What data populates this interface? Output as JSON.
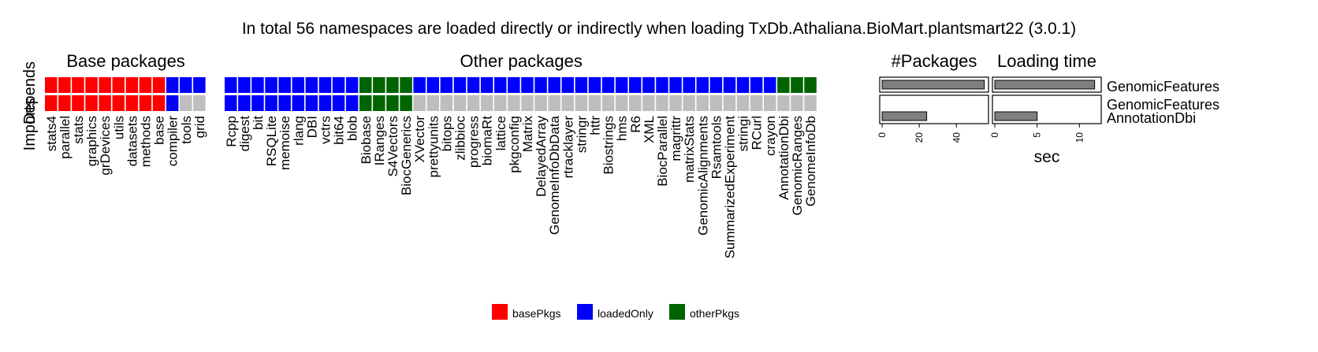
{
  "chart_data": {
    "type": "heatmap",
    "title": "In total 56 namespaces are loaded directly or indirectly when loading TxDb.Athaliana.BioMart.plantsmart22 (3.0.1)",
    "row_axis_label": "Depends",
    "row_axis_label_overlay": "Imports",
    "rows": [
      "Depends",
      "Imports"
    ],
    "groups": [
      {
        "name": "Base packages",
        "packages": [
          "stats4",
          "parallel",
          "stats",
          "graphics",
          "grDevices",
          "utils",
          "datasets",
          "methods",
          "base",
          "compiler",
          "tools",
          "grid"
        ],
        "depends": [
          "basePkgs",
          "basePkgs",
          "basePkgs",
          "basePkgs",
          "basePkgs",
          "basePkgs",
          "basePkgs",
          "basePkgs",
          "basePkgs",
          "loadedOnly",
          "loadedOnly",
          "loadedOnly"
        ],
        "imports": [
          "basePkgs",
          "basePkgs",
          "basePkgs",
          "basePkgs",
          "basePkgs",
          "basePkgs",
          "basePkgs",
          "basePkgs",
          "basePkgs",
          "loadedOnly",
          "none",
          "none"
        ]
      },
      {
        "name": "Other packages",
        "packages": [
          "Rcpp",
          "digest",
          "bit",
          "RSQLite",
          "memoise",
          "rlang",
          "DBI",
          "vctrs",
          "bit64",
          "blob",
          "Biobase",
          "IRanges",
          "S4Vectors",
          "BiocGenerics",
          "XVector",
          "prettyunits",
          "bitops",
          "zlibbioc",
          "progress",
          "biomaRt",
          "lattice",
          "pkgconfig",
          "Matrix",
          "DelayedArray",
          "GenomeInfoDbData",
          "rtracklayer",
          "stringr",
          "httr",
          "Biostrings",
          "hms",
          "R6",
          "XML",
          "BiocParallel",
          "magrittr",
          "matrixStats",
          "GenomicAlignments",
          "Rsamtools",
          "SummarizedExperiment",
          "stringi",
          "RCurl",
          "crayon",
          "AnnotationDbi",
          "GenomicRanges",
          "GenomeInfoDb"
        ],
        "depends": [
          "loadedOnly",
          "loadedOnly",
          "loadedOnly",
          "loadedOnly",
          "loadedOnly",
          "loadedOnly",
          "loadedOnly",
          "loadedOnly",
          "loadedOnly",
          "loadedOnly",
          "otherPkgs",
          "otherPkgs",
          "otherPkgs",
          "otherPkgs",
          "loadedOnly",
          "loadedOnly",
          "loadedOnly",
          "loadedOnly",
          "loadedOnly",
          "loadedOnly",
          "loadedOnly",
          "loadedOnly",
          "loadedOnly",
          "loadedOnly",
          "loadedOnly",
          "loadedOnly",
          "loadedOnly",
          "loadedOnly",
          "loadedOnly",
          "loadedOnly",
          "loadedOnly",
          "loadedOnly",
          "loadedOnly",
          "loadedOnly",
          "loadedOnly",
          "loadedOnly",
          "loadedOnly",
          "loadedOnly",
          "loadedOnly",
          "loadedOnly",
          "loadedOnly",
          "otherPkgs",
          "otherPkgs",
          "otherPkgs"
        ],
        "imports": [
          "loadedOnly",
          "loadedOnly",
          "loadedOnly",
          "loadedOnly",
          "loadedOnly",
          "loadedOnly",
          "loadedOnly",
          "loadedOnly",
          "loadedOnly",
          "loadedOnly",
          "otherPkgs",
          "otherPkgs",
          "otherPkgs",
          "otherPkgs",
          "none",
          "none",
          "none",
          "none",
          "none",
          "none",
          "none",
          "none",
          "none",
          "none",
          "none",
          "none",
          "none",
          "none",
          "none",
          "none",
          "none",
          "none",
          "none",
          "none",
          "none",
          "none",
          "none",
          "none",
          "none",
          "none",
          "none",
          "none",
          "none",
          "none"
        ]
      }
    ],
    "legend": [
      {
        "key": "basePkgs",
        "label": "basePkgs",
        "color": "#ff0000"
      },
      {
        "key": "loadedOnly",
        "label": "loadedOnly",
        "color": "#0000ff"
      },
      {
        "key": "otherPkgs",
        "label": "otherPkgs",
        "color": "#006400"
      }
    ],
    "empty_color": "#bebebe",
    "legend_position": "bottom",
    "bar_panels": [
      {
        "title": "#Packages",
        "xlabel": "",
        "xlim": [
          0,
          56
        ],
        "ticks": [
          0,
          20,
          40
        ],
        "rows": [
          {
            "bars": [
              {
                "label": "GenomicFeatures",
                "value": 55
              }
            ]
          },
          {
            "bars": [
              {
                "label": "AnnotationDbi",
                "value": 24
              }
            ]
          }
        ]
      },
      {
        "title": "Loading time",
        "xlabel": "sec",
        "xlim": [
          0,
          12.3
        ],
        "ticks": [
          0,
          5,
          10
        ],
        "rows": [
          {
            "bars": [
              {
                "label": "GenomicFeatures",
                "value": 11.8
              }
            ]
          },
          {
            "bars": [
              {
                "label": "AnnotationDbi",
                "value": 5
              }
            ]
          }
        ]
      }
    ],
    "row_labels": [
      [
        "GenomicFeatures"
      ],
      [
        "GenomicFeatures",
        "AnnotationDbi"
      ]
    ]
  }
}
